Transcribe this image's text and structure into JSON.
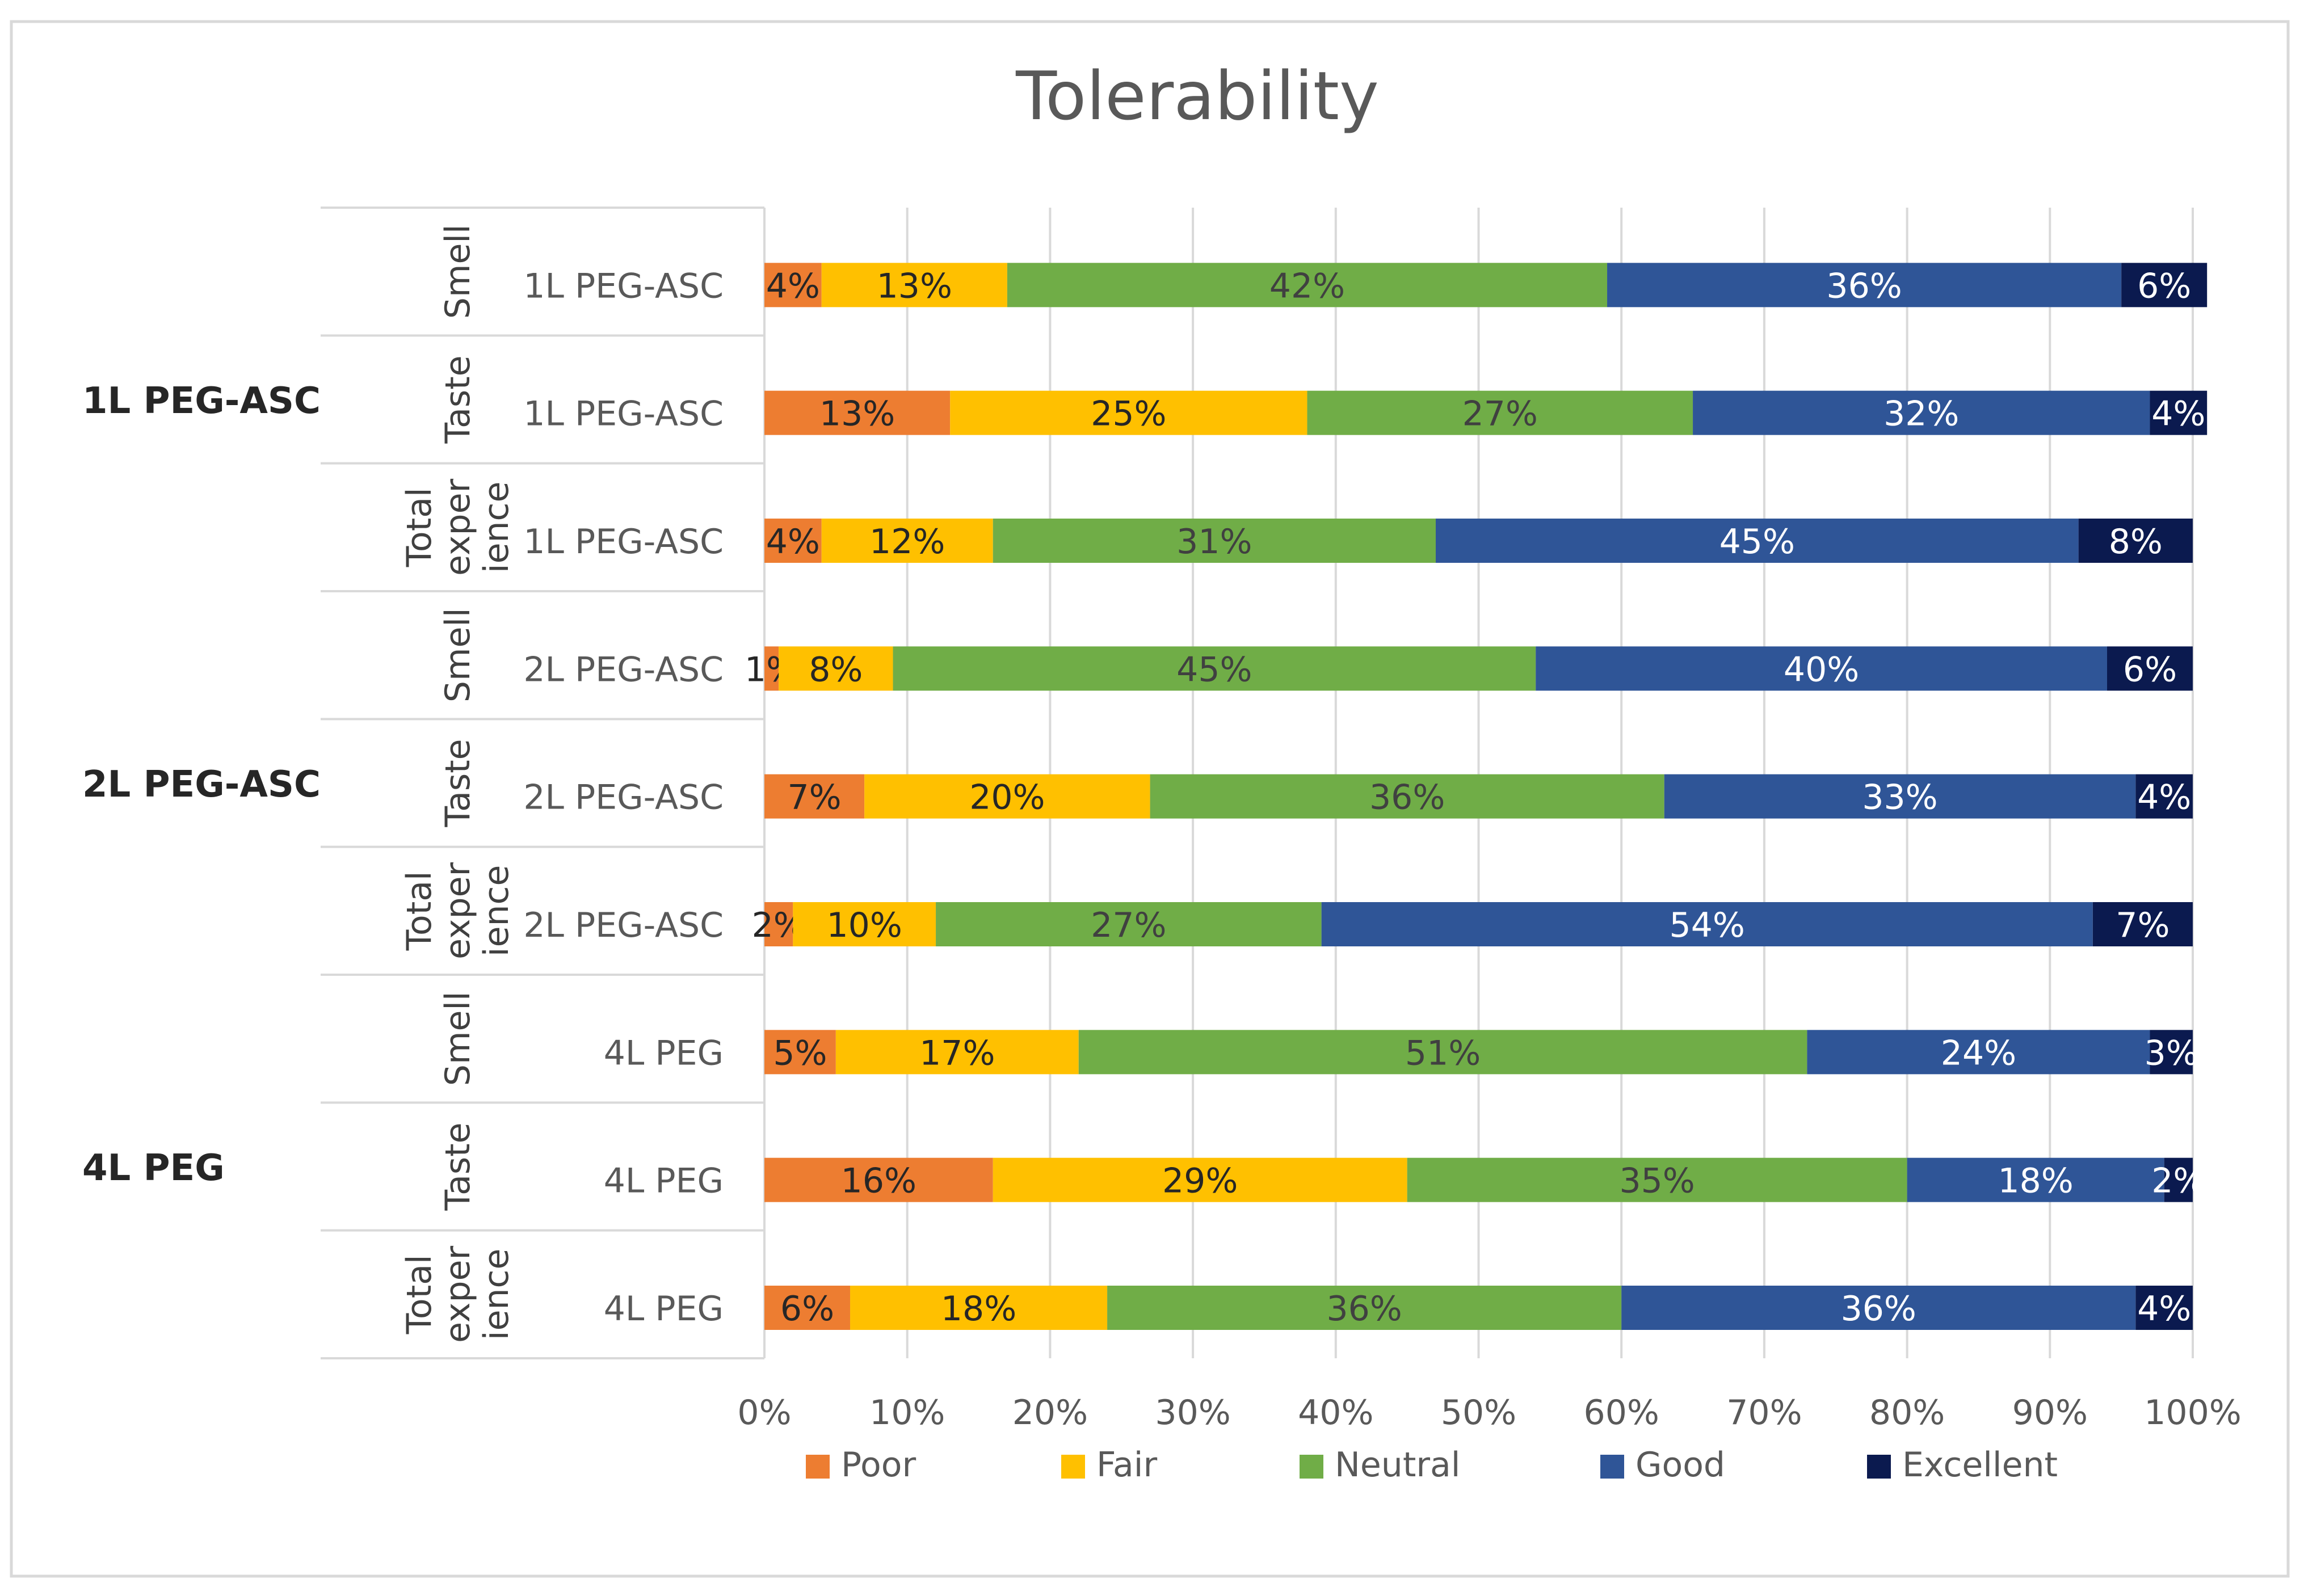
{
  "chart_data": {
    "type": "bar",
    "orientation": "horizontal",
    "stacked": true,
    "percent": true,
    "title": "Tolerability",
    "xlabel": "",
    "ylabel": "",
    "xlim": [
      0,
      100
    ],
    "x_ticks": [
      "0%",
      "10%",
      "20%",
      "30%",
      "40%",
      "50%",
      "60%",
      "70%",
      "80%",
      "90%",
      "100%"
    ],
    "grid": true,
    "legend_position": "bottom",
    "groups": [
      {
        "name": "1L PEG-ASC",
        "rows": [
          {
            "aspect": "Smell",
            "aspect_lines": [
              "Smell"
            ],
            "label": "1L PEG-ASC",
            "values": [
              4,
              13,
              42,
              36,
              6
            ]
          },
          {
            "aspect": "Taste",
            "aspect_lines": [
              "Taste"
            ],
            "label": "1L PEG-ASC",
            "values": [
              13,
              25,
              27,
              32,
              4
            ]
          },
          {
            "aspect": "Total experience",
            "aspect_lines": [
              "Total",
              "exper",
              "ience"
            ],
            "label": "1L PEG-ASC",
            "values": [
              4,
              12,
              31,
              45,
              8
            ]
          }
        ]
      },
      {
        "name": "2L PEG-ASC",
        "rows": [
          {
            "aspect": "Smell",
            "aspect_lines": [
              "Smell"
            ],
            "label": "2L PEG-ASC",
            "values": [
              1,
              8,
              45,
              40,
              6
            ]
          },
          {
            "aspect": "Taste",
            "aspect_lines": [
              "Taste"
            ],
            "label": "2L PEG-ASC",
            "values": [
              7,
              20,
              36,
              33,
              4
            ]
          },
          {
            "aspect": "Total experience",
            "aspect_lines": [
              "Total",
              "exper",
              "ience"
            ],
            "label": "2L PEG-ASC",
            "values": [
              2,
              10,
              27,
              54,
              7
            ]
          }
        ]
      },
      {
        "name": "4L PEG",
        "rows": [
          {
            "aspect": "Smell",
            "aspect_lines": [
              "Smell"
            ],
            "label": "4L PEG",
            "values": [
              5,
              17,
              51,
              24,
              3
            ]
          },
          {
            "aspect": "Taste",
            "aspect_lines": [
              "Taste"
            ],
            "label": "4L PEG",
            "values": [
              16,
              29,
              35,
              18,
              2
            ]
          },
          {
            "aspect": "Total experience",
            "aspect_lines": [
              "Total",
              "exper",
              "ience"
            ],
            "label": "4L PEG",
            "values": [
              6,
              18,
              36,
              36,
              4
            ]
          }
        ]
      }
    ],
    "series": [
      {
        "name": "Poor",
        "color": "#ED7D31",
        "label_color": "#262626"
      },
      {
        "name": "Fair",
        "color": "#FFC000",
        "label_color": "#262626"
      },
      {
        "name": "Neutral",
        "color": "#70AD47",
        "label_color": "#404040"
      },
      {
        "name": "Good",
        "color": "#2F5597",
        "label_color": "#ffffff"
      },
      {
        "name": "Excellent",
        "color": "#0B1A4F",
        "label_color": "#ffffff"
      }
    ]
  }
}
